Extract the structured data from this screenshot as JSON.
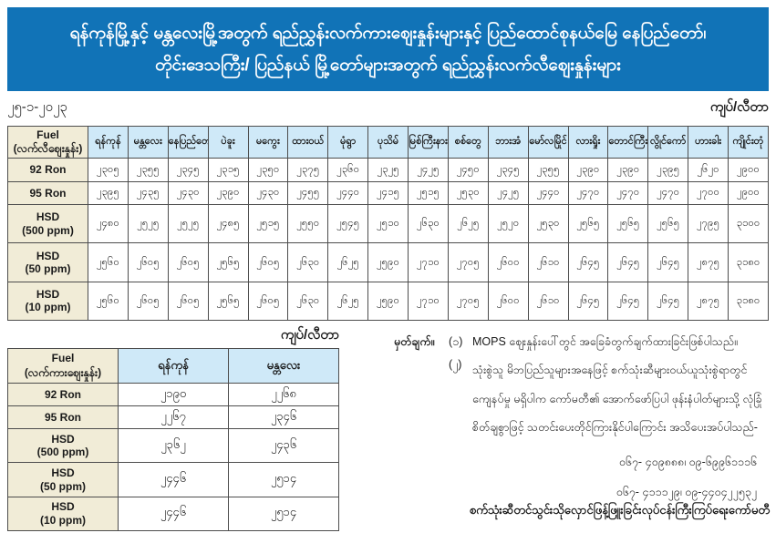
{
  "banner": {
    "line1": "ရန်ကုန်မြို့နှင့် မန္တလေးမြို့အတွက် ရည်ညွှန်းလက်ကားဈေးနှုန်းများနှင့် ပြည်ထောင်စုနယ်မြေ နေပြည်တော်၊",
    "line2": "တိုင်းဒေသကြီး/ ပြည်နယ် မြို့တော်များအတွက် ရည်ညွှန်းလက်လီဈေးနှုန်းများ"
  },
  "date": "၂၅-၁-၂၀၂၃",
  "unit_top": "ကျပ်/လီတာ",
  "unit_bottom": "ကျပ်/လီတာ",
  "retail_table": {
    "fuel_header": {
      "title": "Fuel",
      "sub": "(လက်လီဈေးနှုန်း)"
    },
    "cities": [
      "ရန်ကုန်",
      "မန္တလေး",
      "နေပြည်တော်",
      "ပဲခူး",
      "မကွေး",
      "ထားဝယ်",
      "မုံရွာ",
      "ပုသိမ်",
      "မြစ်ကြီးနား",
      "စစ်တွေ",
      "ဘားအံ",
      "မော်လမြိုင်",
      "လားရှိုး",
      "တောင်ကြီး",
      "လွိုင်ကော်",
      "ဟားခါး",
      "ကျိုင်းတုံ"
    ],
    "rows": [
      {
        "label": "92 Ron",
        "sub": "",
        "values": [
          "၂၃၀၅",
          "၂၃၅၅",
          "၂၃၄၅",
          "၂၃၁၅",
          "၂၃၅၀",
          "၂၃၇၅",
          "၂၃၆၀",
          "၂၃၂၅",
          "၂၄၂၅",
          "၂၄၅၀",
          "၂၃၄၅",
          "၂၃၅၅",
          "၂၃၉၀",
          "၂၃၉၀",
          "၂၃၉၅",
          "၂၆၂၀",
          "၂၉၀၀"
        ]
      },
      {
        "label": "95 Ron",
        "sub": "",
        "values": [
          "၂၃၉၅",
          "၂၄၃၅",
          "၂၄၃၀",
          "၂၃၉၀",
          "၂၄၃၀",
          "၂၄၅၅",
          "၂၄၄၀",
          "၂၄၁၅",
          "၂၅၁၅",
          "၂၅၃၀",
          "၂၄၂၅",
          "၂၄၄၀",
          "၂၄၇၀",
          "၂၄၇၀",
          "၂၄၇၀",
          "၂၇၀၀",
          "၂၉၀၀"
        ]
      },
      {
        "label": "HSD",
        "sub": "(500 ppm)",
        "values": [
          "၂၄၈၀",
          "၂၅၂၅",
          "၂၅၂၅",
          "၂၄၈၅",
          "၂၅၁၅",
          "၂၅၅၀",
          "၂၅၄၅",
          "၂၅၁၀",
          "၂၆၃၀",
          "၂၆၂၅",
          "၂၅၂၀",
          "၂၅၃၀",
          "၂၅၆၅",
          "၂၅၆၅",
          "၂၅၆၅",
          "၂၇၉၅",
          "၃၁၀၀"
        ]
      },
      {
        "label": "HSD",
        "sub": "(50 ppm)",
        "values": [
          "၂၅၆၀",
          "၂၆၀၅",
          "၂၆၀၅",
          "၂၅၆၅",
          "၂၆၀၅",
          "၂၆၃၀",
          "၂၆၂၅",
          "၂၅၉၀",
          "၂၇၁၀",
          "၂၇၀၅",
          "၂၆၀၀",
          "၂၆၁၀",
          "၂၆၄၅",
          "၂၆၄၅",
          "၂၆၄၅",
          "၂၈၇၅",
          "၃၁၈၀"
        ]
      },
      {
        "label": "HSD",
        "sub": "(10 ppm)",
        "values": [
          "၂၅၆၀",
          "၂၆၀၅",
          "၂၆၀၅",
          "၂၅၆၅",
          "၂၆၀၅",
          "၂၆၃၀",
          "၂၆၂၅",
          "၂၅၉၀",
          "၂၇၁၀",
          "၂၇၀၅",
          "၂၆၀၀",
          "၂၆၁၀",
          "၂၆၄၅",
          "၂၆၄၅",
          "၂၆၄၅",
          "၂၈၇၅",
          "၃၁၈၀"
        ]
      }
    ]
  },
  "wholesale_table": {
    "fuel_header": {
      "title": "Fuel",
      "sub": "(လက်ကားဈေးနှုန်း)"
    },
    "cities": [
      "ရန်ကုန်",
      "မန္တလေး"
    ],
    "rows": [
      {
        "label": "92 Ron",
        "sub": "",
        "values": [
          "၂၁၉၀",
          "၂၂၆၈"
        ]
      },
      {
        "label": "95 Ron",
        "sub": "",
        "values": [
          "၂၂၆၇",
          "၂၃၄၆"
        ]
      },
      {
        "label": "HSD",
        "sub": "(500 ppm)",
        "values": [
          "၂၃၆၂",
          "၂၄၃၆"
        ]
      },
      {
        "label": "HSD",
        "sub": "(50 ppm)",
        "values": [
          "၂၄၄၆",
          "၂၅၁၄"
        ]
      },
      {
        "label": "HSD",
        "sub": "(10 ppm)",
        "values": [
          "၂၄၄၆",
          "၂၅၁၄"
        ]
      }
    ]
  },
  "notes": {
    "label": "မှတ်ချက်။",
    "items": [
      {
        "num": "(၁)",
        "text": "MOPS ဈေးနှုန်းပေါ်တွင် အခြေခံတွက်ချက်ထားခြင်းဖြစ်ပါသည်။"
      },
      {
        "num": "(၂)",
        "text": "သုံးစွဲသူ မိဘပြည်သူများအနေဖြင့် စက်သုံးဆီများဝယ်ယူသုံးစွဲရာတွင် ကျေနပ်မှု မရှိပါက ကော်မတီ၏ အောက်ဖော်ပြပါ ဖုန်းနံပါတ်များသို့ လုံခြုံစိတ်ချစွာဖြင့် သတင်းပေးတိုင်ကြားနိုင်ပါကြောင်း အသိပေးအပ်ပါသည်-"
      }
    ],
    "phones": [
      "၀၆၇- ၄၀၉၈၈၈၊ ၀၉-၆၉၉၆၁၁၁၆",
      "၀၆၇- ၄၁၁၁၂၉၊ ၀၉-၄၄၀၄၂၂၅၃၂"
    ],
    "committee": "စက်သုံးဆီတင်သွင်းသိုလှောင်ဖြန့်ဖြူးခြင်းလုပ်ငန်းကြီးကြပ်ရေးကော်မတီ"
  },
  "colors": {
    "banner_blue": "#1173b7",
    "header_light_blue": "#cfe9f8",
    "label_beige": "#f1ecd7",
    "border": "#4d4d4d"
  }
}
